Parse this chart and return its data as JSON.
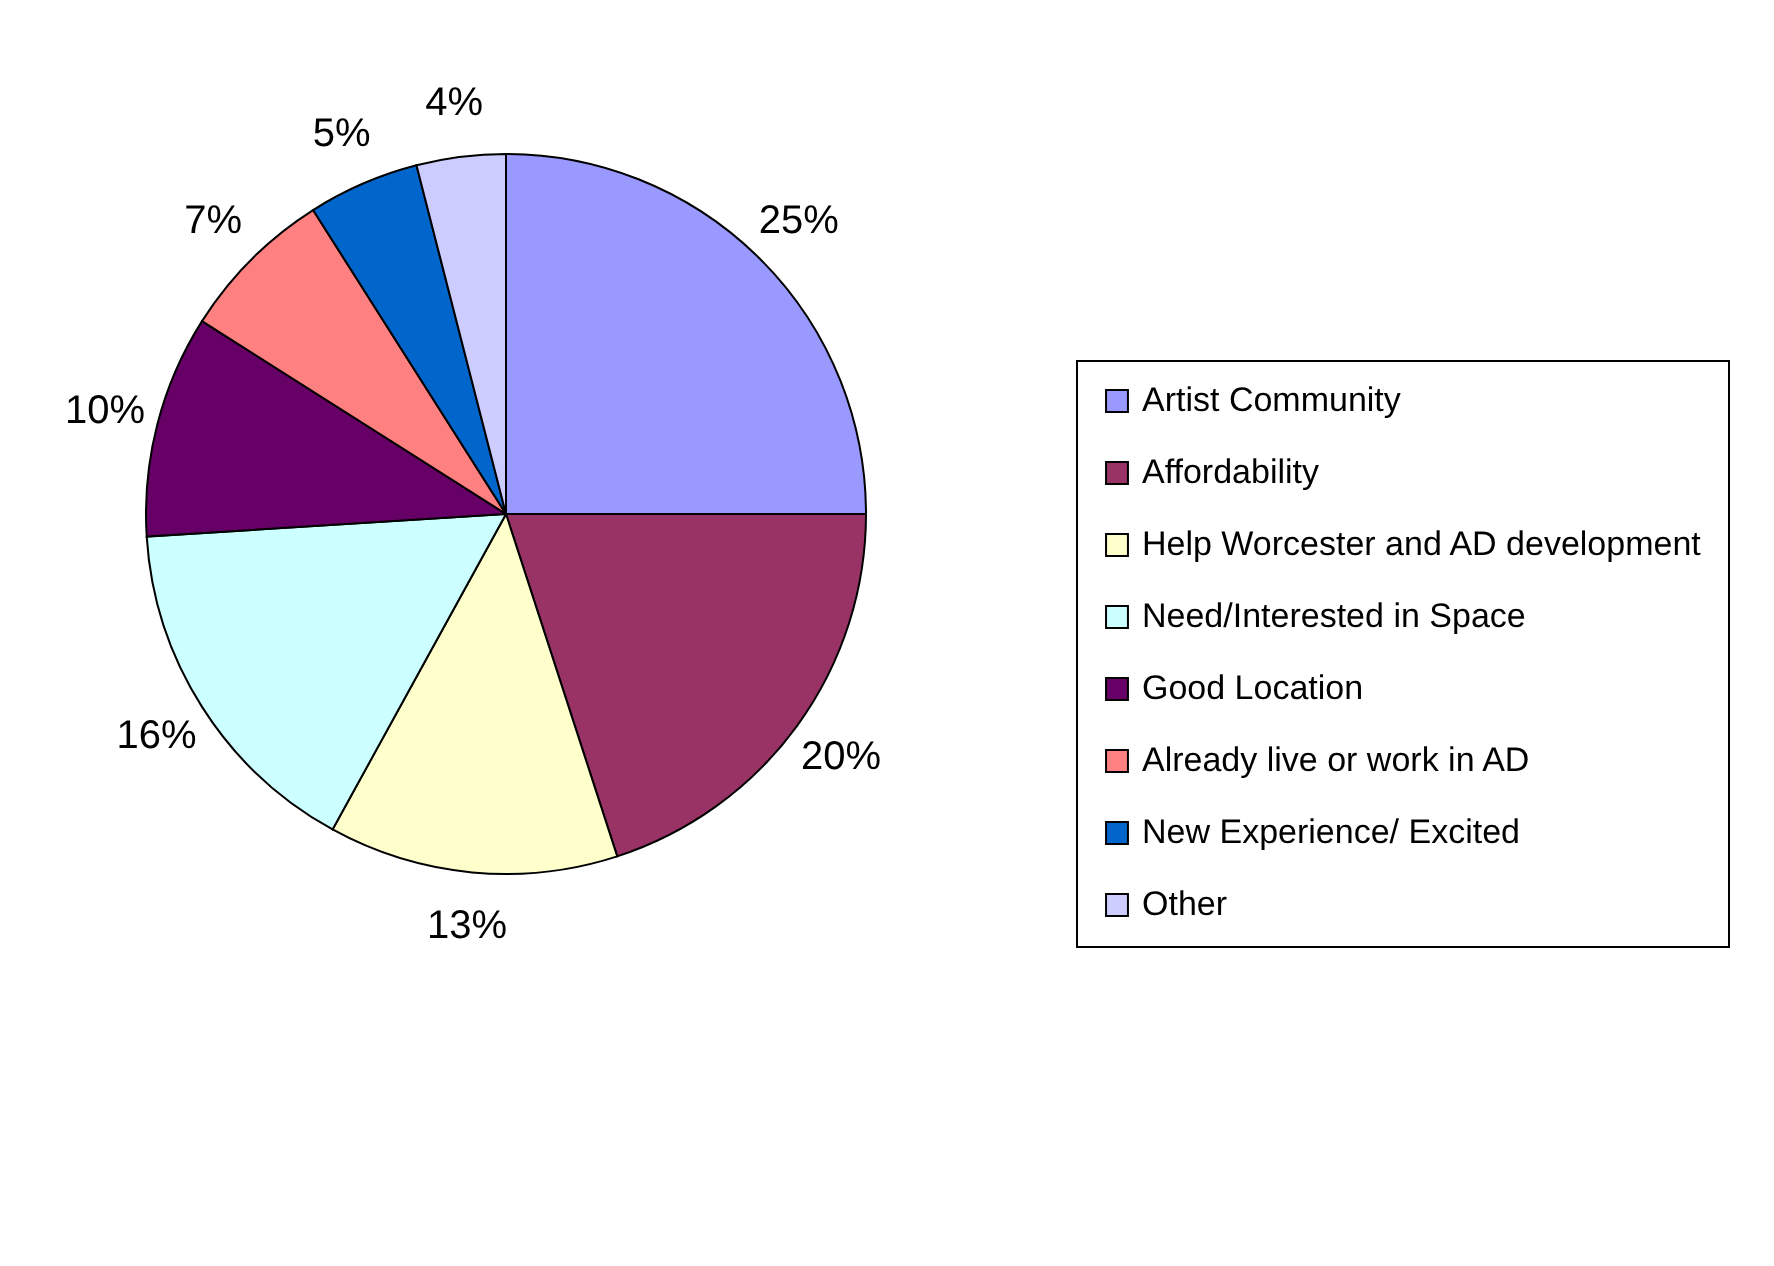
{
  "chart_data": {
    "type": "pie",
    "categories": [
      "Artist Community",
      "Affordability",
      "Help Worcester and AD development",
      "Need/Interested in Space",
      "Good Location",
      "Already live or work in AD",
      "New Experience/ Excited",
      "Other"
    ],
    "values": [
      25,
      20,
      13,
      16,
      10,
      7,
      5,
      4
    ],
    "colors": [
      "#9999ff",
      "#993366",
      "#ffffcc",
      "#ccffff",
      "#660066",
      "#ff8080",
      "#0066cc",
      "#ccccff"
    ],
    "value_labels": [
      "25%",
      "20%",
      "13%",
      "16%",
      "10%",
      "7%",
      "5%",
      "4%"
    ],
    "legend": "right"
  }
}
